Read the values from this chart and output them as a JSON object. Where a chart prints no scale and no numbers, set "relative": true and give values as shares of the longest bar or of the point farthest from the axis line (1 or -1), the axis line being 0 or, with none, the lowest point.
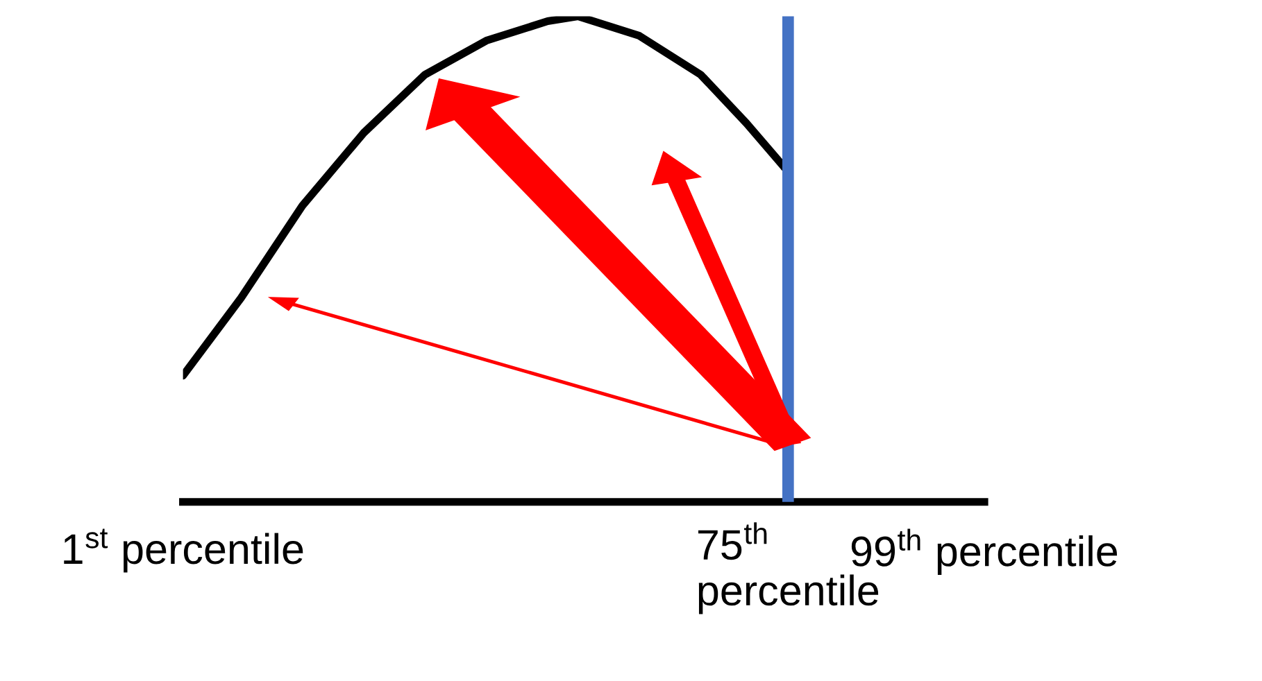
{
  "chart_data": {
    "type": "line",
    "relative": true,
    "xlim": [
      1,
      99
    ],
    "xticks": [
      {
        "value": 1,
        "label": "1$^{st}$ percentile"
      },
      {
        "value": 75,
        "label": "75$^{th}$\npercentile"
      },
      {
        "value": 99,
        "label": "99$^{th}$ percentile"
      }
    ],
    "x": [
      1,
      8.1,
      15.6,
      23.1,
      30.6,
      38.1,
      45.6,
      49.3,
      56.8,
      64.3,
      69.9,
      75
    ],
    "series": [
      {
        "color": "#000000",
        "values": [
          0.26,
          0.42,
          0.61,
          0.76,
          0.88,
          0.95,
          0.99,
          1.0,
          0.96,
          0.88,
          0.78,
          0.68
        ]
      }
    ],
    "ref_lines": [
      {
        "axis": "x",
        "value": 75,
        "color": "#4472c4"
      }
    ],
    "tick_labels": "x",
    "grid": false,
    "legend": false,
    "marker": "none",
    "line_style": "solid"
  }
}
